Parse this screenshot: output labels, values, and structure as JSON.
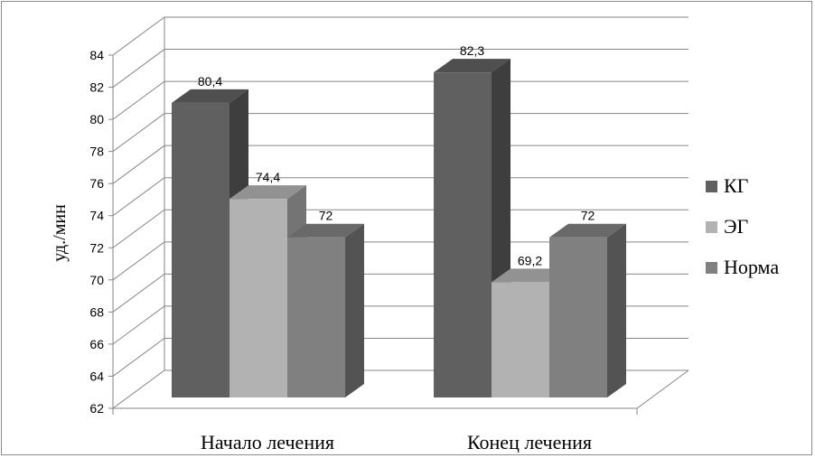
{
  "chart_data": {
    "type": "bar",
    "style": "3d-clustered-column",
    "categories": [
      "Начало  лечения",
      "Конец лечения"
    ],
    "series": [
      {
        "name": "КГ",
        "values": [
          80.4,
          82.3
        ],
        "labels": [
          "80,4",
          "82,3"
        ],
        "color": "#606060"
      },
      {
        "name": "ЭГ",
        "values": [
          74.4,
          69.2
        ],
        "labels": [
          "74,4",
          "69,2"
        ],
        "color": "#b2b2b2"
      },
      {
        "name": "Норма",
        "values": [
          72,
          72
        ],
        "labels": [
          "72",
          "72"
        ],
        "color": "#808080"
      }
    ],
    "ylabel": "уд./мин",
    "ylim": [
      62,
      84
    ],
    "yticks": [
      "62",
      "64",
      "66",
      "68",
      "70",
      "72",
      "74",
      "76",
      "78",
      "80",
      "82",
      "84"
    ],
    "grid": true,
    "legend": "right"
  }
}
